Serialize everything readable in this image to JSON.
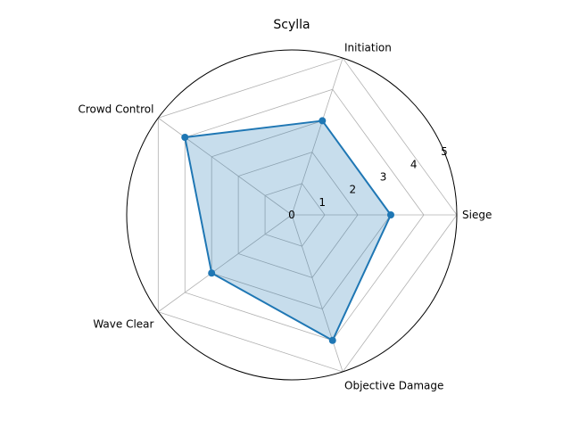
{
  "chart_data": {
    "type": "radar",
    "title": "Scylla",
    "categories": [
      "Siege",
      "Initiation",
      "Crowd Control",
      "Wave Clear",
      "Objective Damage"
    ],
    "series": [
      {
        "values": [
          3,
          3,
          4,
          3,
          4
        ]
      }
    ],
    "r_ticks": [
      "0",
      "1",
      "2",
      "3",
      "4",
      "5"
    ],
    "rlim": [
      0,
      5
    ],
    "grid": true,
    "colors": {
      "line": "#1f77b4",
      "fill": "#1f77b4",
      "grid": "#b0b0b0",
      "spine": "#000000"
    }
  }
}
